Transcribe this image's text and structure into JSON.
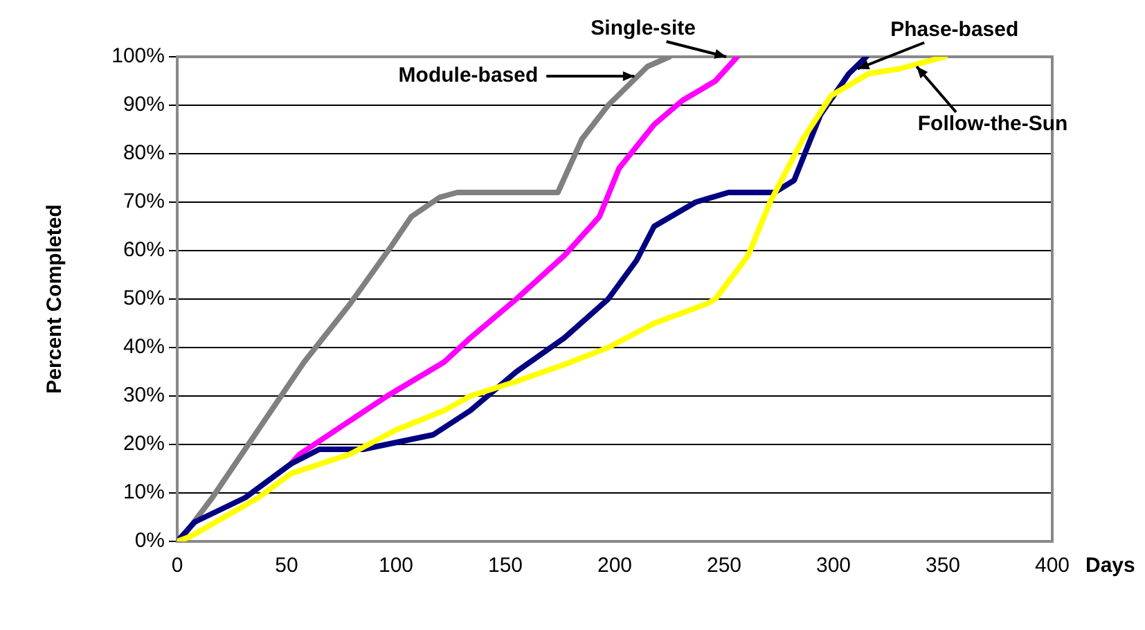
{
  "chart_data": {
    "type": "line",
    "xlabel": "Days",
    "ylabel": "Percent Completed",
    "xlim": [
      0,
      400
    ],
    "xticks": [
      0,
      50,
      100,
      150,
      200,
      250,
      300,
      350,
      400
    ],
    "ylim": [
      0,
      100
    ],
    "yticks": [
      {
        "value": 0,
        "label": "0%"
      },
      {
        "value": 10,
        "label": "10%"
      },
      {
        "value": 20,
        "label": "20%"
      },
      {
        "value": 30,
        "label": "30%"
      },
      {
        "value": 40,
        "label": "40%"
      },
      {
        "value": 50,
        "label": "50%"
      },
      {
        "value": 60,
        "label": "60%"
      },
      {
        "value": 70,
        "label": "70%"
      },
      {
        "value": 80,
        "label": "80%"
      },
      {
        "value": 90,
        "label": "90%"
      },
      {
        "value": 100,
        "label": "100%"
      }
    ],
    "grid": "y",
    "legend": false,
    "marker": "none",
    "line_style": "solid",
    "series": [
      {
        "color": "#808080",
        "x": [
          0,
          1,
          16,
          37,
          58,
          79,
          98,
          107,
          120,
          128,
          174,
          185,
          197,
          215,
          225
        ],
        "values": [
          0,
          0,
          9,
          23,
          37,
          49,
          61,
          67,
          71,
          72,
          72,
          83,
          90,
          98,
          100
        ]
      },
      {
        "color": "#ff00ff",
        "x": [
          52,
          56,
          96,
          122,
          134,
          155,
          177,
          193,
          202,
          218,
          231,
          246,
          256
        ],
        "values": [
          16,
          18,
          30,
          37,
          42,
          50,
          59,
          67,
          77,
          86,
          91,
          95,
          100
        ]
      },
      {
        "color": "#000080",
        "x": [
          0,
          8,
          31,
          52,
          65,
          85,
          117,
          134,
          155,
          177,
          197,
          210,
          218,
          237,
          252,
          273,
          282,
          294,
          307,
          315
        ],
        "values": [
          0,
          4,
          9,
          16,
          19,
          19,
          22,
          27,
          35,
          42,
          50,
          58,
          65,
          70,
          72,
          72,
          74.5,
          88,
          96.5,
          100
        ]
      },
      {
        "color": "#ffff00",
        "x": [
          0,
          6,
          37,
          52,
          79,
          100,
          122,
          134,
          155,
          177,
          197,
          218,
          242,
          246,
          261,
          271,
          286,
          299,
          316,
          330,
          351
        ],
        "values": [
          0,
          1,
          9,
          14,
          18,
          23,
          27,
          30,
          33,
          36.5,
          40,
          45,
          49,
          50,
          59,
          70,
          83,
          92,
          96.5,
          97.5,
          100
        ]
      }
    ],
    "annotations": [
      {
        "text": "Single-site",
        "x": 251,
        "y": 100
      },
      {
        "text": "Module-based",
        "x": 209,
        "y": 96
      },
      {
        "text": "Phase-based",
        "x": 311,
        "y": 97.5
      },
      {
        "text": "Follow-the-Sun",
        "x": 338,
        "y": 98
      }
    ]
  }
}
